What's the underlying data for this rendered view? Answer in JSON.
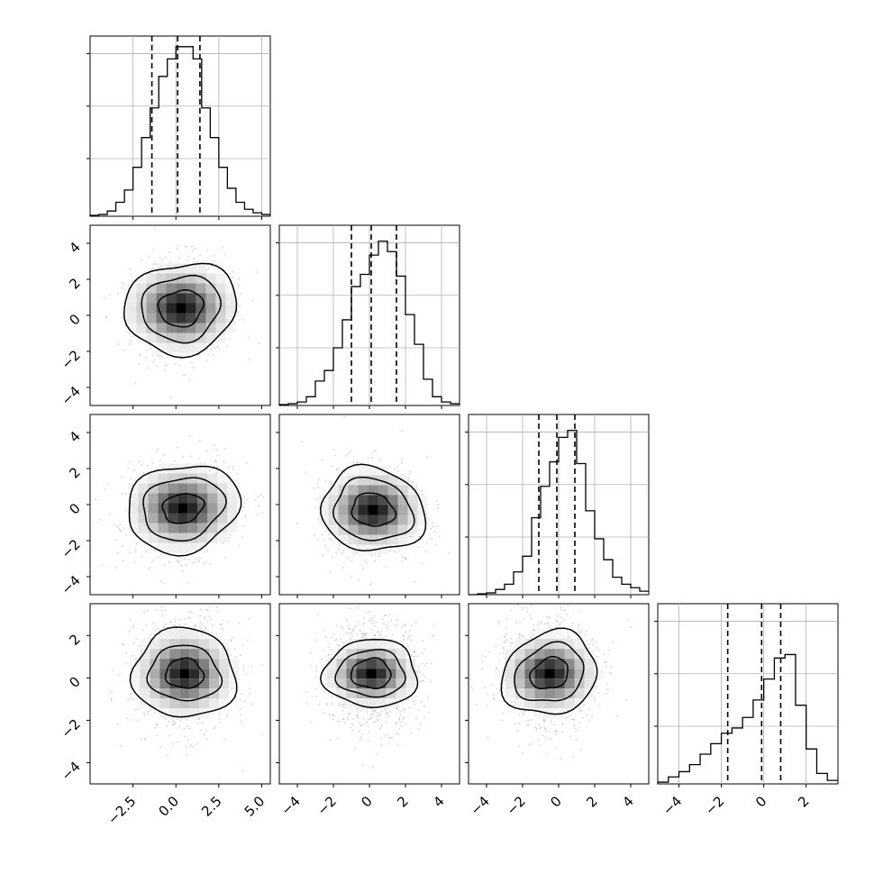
{
  "chart_data": {
    "type": "corner",
    "n_params": 4,
    "grid": true,
    "marginals": [
      {
        "param_index": 0,
        "range": [
          -5.0,
          5.5
        ],
        "quantiles": [
          -1.4,
          0.1,
          1.4
        ],
        "bins": [
          -5.0,
          -4.5,
          -4.0,
          -3.5,
          -3.0,
          -2.5,
          -2.0,
          -1.5,
          -1.0,
          -0.5,
          0.0,
          0.5,
          1.0,
          1.5,
          2.0,
          2.5,
          3.0,
          3.5,
          4.0,
          4.5,
          5.0,
          5.5
        ],
        "counts": [
          0.5,
          1,
          3,
          8,
          15,
          28,
          45,
          62,
          80,
          90,
          97,
          97,
          90,
          62,
          45,
          28,
          16,
          8,
          4,
          2,
          1
        ],
        "ymax": 100
      },
      {
        "param_index": 1,
        "range": [
          -5.0,
          5.0
        ],
        "quantiles": [
          -1.0,
          0.1,
          1.5
        ],
        "bins": [
          -5.0,
          -4.5,
          -4.0,
          -3.5,
          -3.0,
          -2.5,
          -2.0,
          -1.5,
          -1.0,
          -0.5,
          0.0,
          0.5,
          1.0,
          1.5,
          2.0,
          2.5,
          3.0,
          3.5,
          4.0,
          4.5,
          5.0
        ],
        "counts": [
          0.5,
          1,
          2,
          5,
          14,
          20,
          33,
          49,
          68,
          75,
          86,
          94,
          88,
          74,
          52,
          35,
          15,
          5,
          2,
          1
        ],
        "ymax": 100
      },
      {
        "param_index": 2,
        "range": [
          -5.0,
          5.0
        ],
        "quantiles": [
          -1.1,
          -0.1,
          0.9
        ],
        "bins": [
          -5.0,
          -4.5,
          -4.0,
          -3.5,
          -3.0,
          -2.5,
          -2.0,
          -1.5,
          -1.0,
          -0.5,
          0.0,
          0.5,
          1.0,
          1.5,
          2.0,
          2.5,
          3.0,
          3.5,
          4.0,
          4.5,
          5.0
        ],
        "counts": [
          0,
          0.5,
          1,
          3,
          6,
          13,
          22,
          44,
          62,
          76,
          90,
          94,
          75,
          48,
          32,
          20,
          10,
          6,
          4,
          2
        ],
        "ymax": 100
      },
      {
        "param_index": 3,
        "range": [
          -5.0,
          3.5
        ],
        "quantiles": [
          -1.7,
          -0.1,
          0.8
        ],
        "bins": [
          -5.0,
          -4.5,
          -4.0,
          -3.5,
          -3.0,
          -2.5,
          -2.0,
          -1.5,
          -1.0,
          -0.5,
          0.0,
          0.5,
          1.0,
          1.5,
          2.0,
          2.5,
          3.0,
          3.5
        ],
        "counts": [
          1,
          4,
          7,
          11,
          17,
          23,
          29,
          32,
          38,
          48,
          60,
          72,
          74,
          45,
          20,
          6,
          2
        ],
        "ymax": 100
      }
    ],
    "joint": [
      {
        "x_param": 0,
        "y_param": 1,
        "xrange": [
          -5.0,
          5.5
        ],
        "yrange": [
          -5.0,
          5.0
        ],
        "center": [
          0.3,
          0.4
        ],
        "contour_scales": [
          [
            1.3,
            1.0
          ],
          [
            2.3,
            1.8
          ],
          [
            3.3,
            2.5
          ]
        ],
        "spread": [
          1.5,
          1.4
        ],
        "rho": -0.2
      },
      {
        "x_param": 0,
        "y_param": 2,
        "xrange": [
          -5.0,
          5.5
        ],
        "yrange": [
          -5.0,
          5.0
        ],
        "center": [
          0.4,
          -0.2
        ],
        "contour_scales": [
          [
            1.2,
            0.8
          ],
          [
            2.4,
            1.7
          ],
          [
            3.3,
            2.4
          ]
        ],
        "spread": [
          1.6,
          1.3
        ],
        "rho": -0.25
      },
      {
        "x_param": 1,
        "y_param": 2,
        "xrange": [
          -5.0,
          5.0
        ],
        "yrange": [
          -5.0,
          5.0
        ],
        "center": [
          0.2,
          -0.3
        ],
        "contour_scales": [
          [
            1.2,
            0.9
          ],
          [
            2.2,
            1.7
          ],
          [
            2.9,
            2.3
          ]
        ],
        "spread": [
          1.4,
          1.3
        ],
        "rho": 0.25
      },
      {
        "x_param": 0,
        "y_param": 3,
        "xrange": [
          -5.0,
          5.5
        ],
        "yrange": [
          -5.0,
          3.5
        ],
        "center": [
          0.5,
          0.2
        ],
        "contour_scales": [
          [
            1.1,
            0.7
          ],
          [
            2.1,
            1.3
          ],
          [
            3.0,
            2.1
          ]
        ],
        "spread": [
          1.5,
          1.4
        ],
        "rho": 0.1
      },
      {
        "x_param": 1,
        "y_param": 3,
        "xrange": [
          -5.0,
          5.0
        ],
        "yrange": [
          -5.0,
          3.5
        ],
        "center": [
          0.1,
          0.2
        ],
        "contour_scales": [
          [
            1.1,
            0.7
          ],
          [
            1.9,
            1.1
          ],
          [
            2.6,
            1.6
          ]
        ],
        "spread": [
          1.4,
          1.3
        ],
        "rho": 0.0
      },
      {
        "x_param": 2,
        "y_param": 3,
        "xrange": [
          -5.0,
          5.0
        ],
        "yrange": [
          -5.0,
          3.5
        ],
        "center": [
          -0.5,
          0.2
        ],
        "contour_scales": [
          [
            1.1,
            0.7
          ],
          [
            2.0,
            1.3
          ],
          [
            2.7,
            1.9
          ]
        ],
        "spread": [
          1.4,
          1.4
        ],
        "rho": -0.45
      }
    ],
    "ticks": {
      "x_bottom": [
        {
          "param": 0,
          "values": [
            -2.5,
            0.0,
            2.5,
            5.0
          ],
          "labels": [
            "−2.5",
            "0.0",
            "2.5",
            "5.0"
          ]
        },
        {
          "param": 1,
          "values": [
            -4,
            -2,
            0,
            2,
            4
          ],
          "labels": [
            "−4",
            "−2",
            "0",
            "2",
            "4"
          ]
        },
        {
          "param": 2,
          "values": [
            -4,
            -2,
            0,
            2,
            4
          ],
          "labels": [
            "−4",
            "−2",
            "0",
            "2",
            "4"
          ]
        },
        {
          "param": 3,
          "values": [
            -4,
            -2,
            0,
            2
          ],
          "labels": [
            "−4",
            "−2",
            "0",
            "2"
          ]
        }
      ],
      "y_left": [
        {
          "param": 1,
          "values": [
            -4,
            -2,
            0,
            2,
            4
          ],
          "labels": [
            "−4",
            "−2",
            "0",
            "2",
            "4"
          ]
        },
        {
          "param": 2,
          "values": [
            -4,
            -2,
            0,
            2,
            4
          ],
          "labels": [
            "−4",
            "−2",
            "0",
            "2",
            "4"
          ]
        },
        {
          "param": 3,
          "values": [
            -4,
            -2,
            0,
            2
          ],
          "labels": [
            "−4",
            "−2",
            "0",
            "2"
          ]
        }
      ]
    },
    "colors": {
      "line": "#000000",
      "grid": "#b0b0b0",
      "points": "#9a9a9a",
      "density_max": "#000000"
    }
  }
}
